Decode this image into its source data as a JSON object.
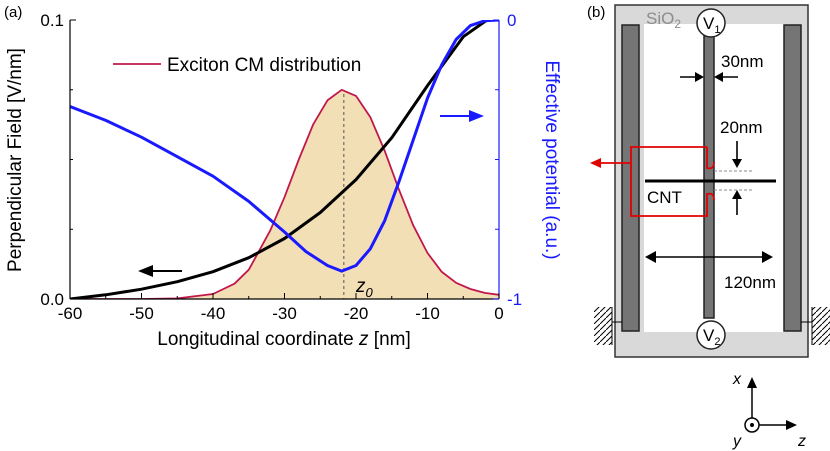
{
  "chart_data": [
    {
      "panel_label": "(a)",
      "type": "line",
      "xlabel_prefix": "Longitudinal coordinate ",
      "xlabel_var": "z",
      "xlabel_unit": " [nm]",
      "ylabel": "Perpendicular Field [V/nm]",
      "y2label": "Effective potential (a.u.)",
      "xlim": [
        -60,
        0
      ],
      "ylim": [
        0,
        0.1
      ],
      "y2lim": [
        -1,
        0
      ],
      "x_ticks": [
        "-60",
        "-50",
        "-40",
        "-30",
        "-20",
        "-10",
        "0"
      ],
      "y_ticks": [
        "0.0",
        "0.1"
      ],
      "y2_ticks": [
        "0",
        "-1"
      ],
      "marker_label": "z",
      "marker_sub": "0",
      "marker_x": -21.7,
      "colors": {
        "field": "#000000",
        "potential": "#1a1aff",
        "exciton": "#c0184a",
        "exciton_fill": "#f3dfb6",
        "axis_right": "#1a1aff"
      },
      "series": [
        {
          "name": "Exciton CM distribution",
          "axis": "left",
          "x": [
            -60,
            -50,
            -45,
            -40,
            -37,
            -35,
            -32,
            -30,
            -28,
            -26,
            -24,
            -22,
            -20,
            -18,
            -16,
            -14,
            -12,
            -10,
            -8,
            -6,
            -4,
            -2,
            0
          ],
          "y": [
            0.0,
            0.0,
            0.0002,
            0.0018,
            0.0055,
            0.0105,
            0.0245,
            0.0365,
            0.05,
            0.0625,
            0.0712,
            0.075,
            0.0728,
            0.0652,
            0.0532,
            0.0393,
            0.0264,
            0.0165,
            0.0097,
            0.0058,
            0.0036,
            0.0022,
            0.0015
          ]
        },
        {
          "name": "field",
          "axis": "left",
          "x": [
            -60,
            -55,
            -50,
            -45,
            -40,
            -35,
            -30,
            -25,
            -20,
            -15,
            -10,
            -5,
            0
          ],
          "y": [
            0.0,
            0.0015,
            0.0035,
            0.0062,
            0.0098,
            0.0148,
            0.0217,
            0.031,
            0.0428,
            0.0578,
            0.0765,
            0.094,
            0.103
          ]
        },
        {
          "name": "potential",
          "axis": "right",
          "x": [
            -60,
            -55,
            -50,
            -45,
            -40,
            -35,
            -30,
            -27,
            -24,
            -22,
            -20,
            -18,
            -16,
            -14,
            -12,
            -10,
            -8,
            -6,
            -4,
            -2,
            0
          ],
          "y": [
            -0.31,
            -0.36,
            -0.42,
            -0.49,
            -0.56,
            -0.65,
            -0.76,
            -0.83,
            -0.88,
            -0.9,
            -0.88,
            -0.82,
            -0.72,
            -0.58,
            -0.43,
            -0.28,
            -0.16,
            -0.07,
            -0.02,
            -0.003,
            0.0
          ]
        }
      ]
    },
    {
      "panel_label": "(b)",
      "type": "diagram",
      "labels": {
        "oxide": "SiO",
        "oxide_sub": "2",
        "v1": "V",
        "v1_sub": "1",
        "v2": "V",
        "v2_sub": "2",
        "width1": "30nm",
        "width2": "20nm",
        "cnt": "CNT",
        "length": "120nm",
        "axis_x": "x",
        "axis_y": "y",
        "axis_z": "z"
      }
    }
  ]
}
